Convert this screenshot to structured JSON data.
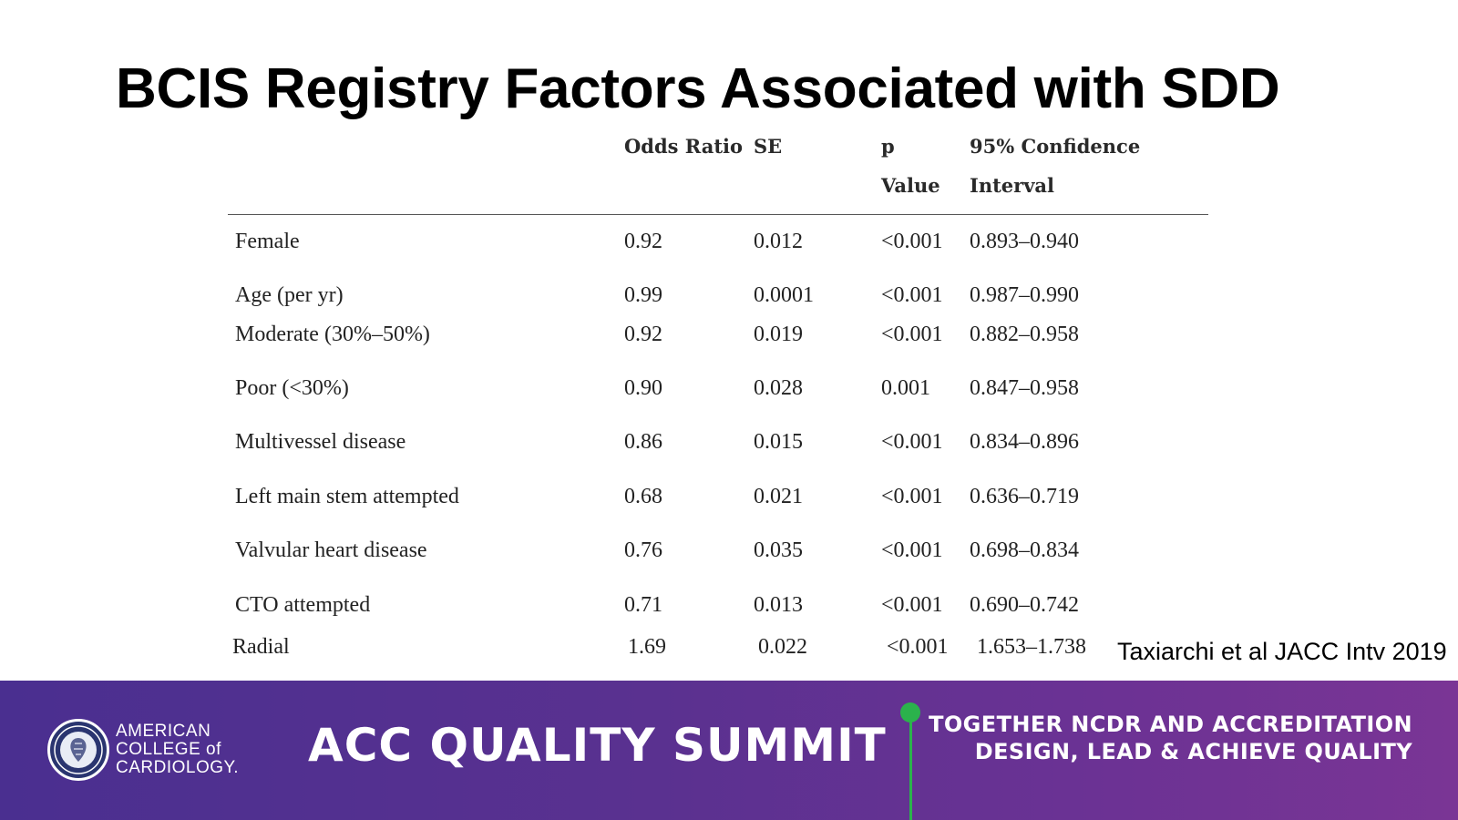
{
  "title": "BCIS Registry Factors Associated with SDD",
  "table": {
    "headers": {
      "odds_ratio": "Odds Ratio",
      "se": "SE",
      "p_line1": "p",
      "p_line2": "Value",
      "ci_line1": "95% Confidence",
      "ci_line2": "Interval"
    },
    "rows": [
      {
        "label": "Female",
        "or": "0.92",
        "se": "0.012",
        "p": "<0.001",
        "ci": "0.893–0.940"
      },
      {
        "label": "Age (per yr)",
        "or": "0.99",
        "se": "0.0001",
        "p": "<0.001",
        "ci": "0.987–0.990"
      },
      {
        "label": "Moderate (30%–50%)",
        "or": "0.92",
        "se": "0.019",
        "p": "<0.001",
        "ci": "0.882–0.958"
      },
      {
        "label": "Poor (<30%)",
        "or": "0.90",
        "se": "0.028",
        "p": "0.001",
        "ci": "0.847–0.958"
      },
      {
        "label": "Multivessel disease",
        "or": "0.86",
        "se": "0.015",
        "p": "<0.001",
        "ci": "0.834–0.896"
      },
      {
        "label": "Left main stem attempted",
        "or": "0.68",
        "se": "0.021",
        "p": "<0.001",
        "ci": "0.636–0.719"
      },
      {
        "label": "Valvular heart disease",
        "or": "0.76",
        "se": "0.035",
        "p": "<0.001",
        "ci": "0.698–0.834"
      },
      {
        "label": "CTO attempted",
        "or": "0.71",
        "se": "0.013",
        "p": "<0.001",
        "ci": "0.690–0.742"
      },
      {
        "label": "Radial",
        "or": "1.69",
        "se": "0.022",
        "p": "<0.001",
        "ci": "1.653–1.738"
      }
    ]
  },
  "citation": "Taxiarchi et al JACC Intv 2019",
  "footer": {
    "logo_lines": [
      "AMERICAN",
      "COLLEGE of",
      "CARDIOLOGY."
    ],
    "summit": "ACC QUALITY SUMMIT",
    "tagline_line1": "TOGETHER NCDR AND ACCREDITATION",
    "tagline_line2": "DESIGN, LEAD & ACHIEVE QUALITY",
    "accent_color": "#2bb24c",
    "gradient_colors": [
      "#4a2f90",
      "#7a3595"
    ],
    "logo_icon": "acc-seal-icon"
  }
}
